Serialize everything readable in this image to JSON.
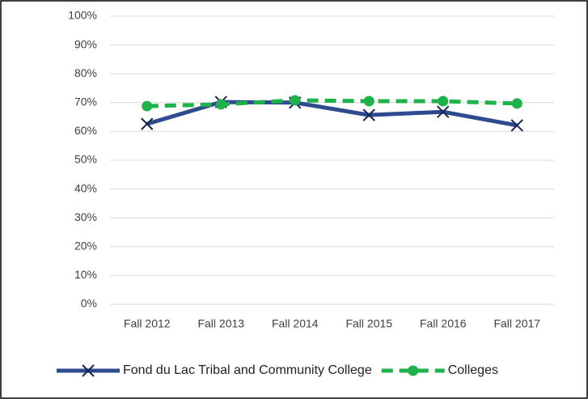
{
  "chart_data": {
    "type": "line",
    "categories": [
      "Fall 2012",
      "Fall 2013",
      "Fall 2014",
      "Fall 2015",
      "Fall 2016",
      "Fall 2017"
    ],
    "series": [
      {
        "name": "Fond du Lac Tribal and Community College",
        "color": "#2f4b8f",
        "values": [
          62.6,
          70.2,
          70.0,
          65.7,
          66.8,
          62.1
        ]
      },
      {
        "name": "Colleges",
        "color": "#1fb24a",
        "values": [
          68.8,
          69.4,
          70.8,
          70.5,
          70.5,
          69.7
        ]
      }
    ],
    "ylim": [
      0,
      100
    ],
    "yticks": [
      {
        "value": 0,
        "label": "0%"
      },
      {
        "value": 10,
        "label": "10%"
      },
      {
        "value": 20,
        "label": "20%"
      },
      {
        "value": 30,
        "label": "30%"
      },
      {
        "value": 40,
        "label": "40%"
      },
      {
        "value": 50,
        "label": "50%"
      },
      {
        "value": 60,
        "label": "60%"
      },
      {
        "value": 70,
        "label": "70%"
      },
      {
        "value": 80,
        "label": "80%"
      },
      {
        "value": 90,
        "label": "90%"
      },
      {
        "value": 100,
        "label": "100%"
      }
    ],
    "grid": true,
    "legend": "bottom"
  }
}
